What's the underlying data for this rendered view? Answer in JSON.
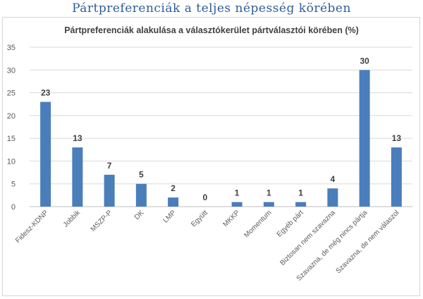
{
  "page_title": "Pártpreferenciák a teljes népesség körében",
  "chart_data": {
    "type": "bar",
    "title": "Pártpreferenciák alakulása a választókerület pártválasztói körében (%)",
    "xlabel": "",
    "ylabel": "",
    "ylim": [
      0,
      35
    ],
    "yticks": [
      0,
      5,
      10,
      15,
      20,
      25,
      30,
      35
    ],
    "grid": true,
    "legend": "none",
    "bar_color": "#4a7ebb",
    "categories": [
      "Fidesz-KDNP",
      "Jobbik",
      "MSZP-P",
      "DK",
      "LMP",
      "Együtt",
      "MKKP",
      "Momentum",
      "Egyéb párt",
      "Biztosan nem szavazna",
      "Szavazna, de még nincs pártja",
      "Szavazna, de nem válaszol"
    ],
    "values": [
      23,
      13,
      7,
      5,
      2,
      0,
      1,
      1,
      1,
      4,
      30,
      13
    ]
  }
}
